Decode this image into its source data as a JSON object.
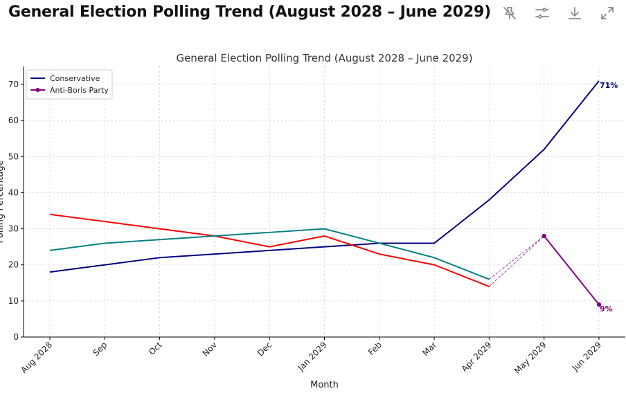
{
  "header": {
    "title": "General Election Polling Trend (August 2028 – June 2029)",
    "toolbar": [
      {
        "name": "clear-pin-icon"
      },
      {
        "name": "filter-settings-icon"
      },
      {
        "name": "download-icon"
      },
      {
        "name": "expand-icon"
      }
    ]
  },
  "chart_data": {
    "type": "line",
    "title": "General Election Polling Trend (August 2028 – June 2029)",
    "xlabel": "Month",
    "ylabel": "Polling Percentage",
    "categories": [
      "Aug 2028",
      "Sep",
      "Oct",
      "Nov",
      "Dec",
      "Jan 2029",
      "Feb",
      "Mar",
      "Apr 2029",
      "May 2029",
      "Jun 2029"
    ],
    "ylim": [
      0,
      75
    ],
    "yticks": [
      0,
      10,
      20,
      30,
      40,
      50,
      60,
      70
    ],
    "grid": true,
    "legend_position": "top-left",
    "series": [
      {
        "name": "Conservative",
        "color": "#000080",
        "marker": "none",
        "values": [
          18,
          20,
          22,
          23,
          24,
          25,
          26,
          26,
          38,
          52,
          71
        ]
      },
      {
        "name": "",
        "color": "#ff0000",
        "marker": "none",
        "values": [
          34,
          32,
          30,
          28,
          25,
          28,
          23,
          20,
          14,
          null,
          null
        ]
      },
      {
        "name": "",
        "color": "#008080",
        "marker": "none",
        "values": [
          24,
          26,
          27,
          28,
          29,
          30,
          26,
          22,
          16,
          null,
          null
        ]
      },
      {
        "name": "Anti-Boris Party",
        "color": "#800080",
        "marker": "circle",
        "values": [
          null,
          null,
          null,
          null,
          null,
          null,
          null,
          null,
          null,
          28,
          9
        ]
      }
    ],
    "connectors": [
      {
        "from_index": 8,
        "from_value": 16,
        "to_index": 9,
        "to_value": 28,
        "color": "#800080",
        "style": "dashed"
      },
      {
        "from_index": 8,
        "from_value": 14,
        "to_index": 9,
        "to_value": 28,
        "color": "#800080",
        "style": "dashed"
      }
    ],
    "annotations": [
      {
        "text": "71%",
        "index": 10,
        "value": 71,
        "color": "#000080"
      },
      {
        "text": "9%",
        "index": 10,
        "value": 9,
        "color": "#800080"
      }
    ]
  }
}
